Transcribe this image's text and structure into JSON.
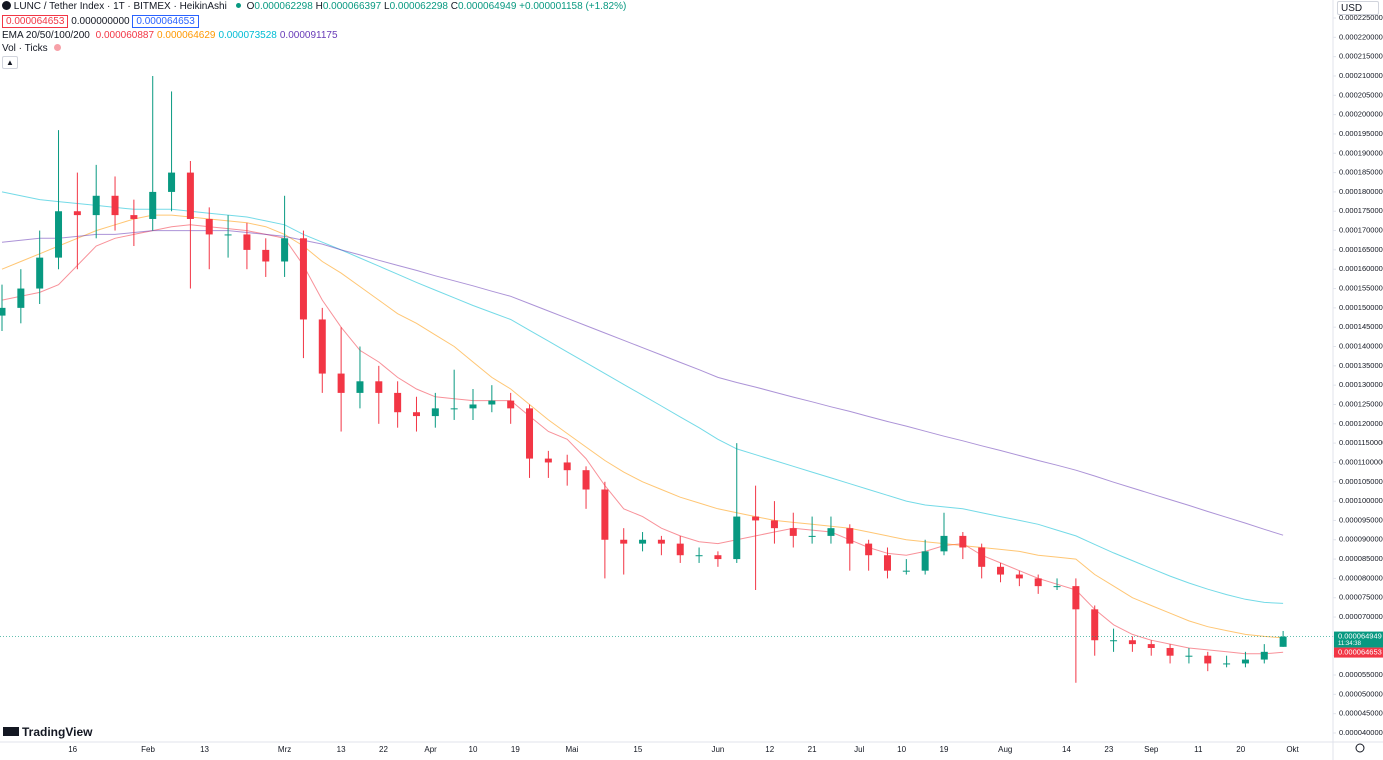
{
  "header": {
    "symbol": "LUNC / Tether Index · 1T · BITMEX · HeikinAshi",
    "ohlc_labels": [
      "O",
      "H",
      "L",
      "C"
    ],
    "change": "+0.000001158 (+1.82%)",
    "boxes": [
      "0.000064653",
      "0.000000000",
      "0.000064653"
    ],
    "ema_label": "EMA 20/50/100/200",
    "vol_label": "Vol · Ticks",
    "currency": "USD",
    "logo": "TradingView",
    "countdown": "11:34:38"
  },
  "chart_data": {
    "type": "candlestick",
    "x": [
      "01-01",
      "01-05",
      "01-09",
      "01-13",
      "01-17",
      "01-21",
      "01-25",
      "01-29",
      "02-02",
      "02-06",
      "02-10",
      "02-14",
      "02-18",
      "02-22",
      "02-26",
      "03-01",
      "03-05",
      "03-09",
      "03-13",
      "03-17",
      "03-21",
      "03-25",
      "03-29",
      "04-02",
      "04-06",
      "04-10",
      "04-14",
      "04-18",
      "04-22",
      "04-26",
      "04-30",
      "05-04",
      "05-08",
      "05-12",
      "05-16",
      "05-20",
      "05-24",
      "05-28",
      "06-01",
      "06-05",
      "06-09",
      "06-13",
      "06-17",
      "06-21",
      "06-25",
      "06-29",
      "07-03",
      "07-07",
      "07-11",
      "07-15",
      "07-19",
      "07-23",
      "07-27",
      "07-31",
      "08-04",
      "08-08",
      "08-12",
      "08-16",
      "08-20",
      "08-24",
      "08-28",
      "09-01",
      "09-05",
      "09-09",
      "09-13",
      "09-17",
      "09-21",
      "09-25",
      "09-29"
    ],
    "open": [
      0.000148,
      0.00015,
      0.000155,
      0.000163,
      0.000175,
      0.000174,
      0.000179,
      0.000174,
      0.000173,
      0.00018,
      0.000185,
      0.000173,
      0.000169,
      0.000169,
      0.000165,
      0.000162,
      0.000168,
      0.000147,
      0.000133,
      0.000128,
      0.000131,
      0.000128,
      0.000123,
      0.000122,
      0.000124,
      0.000124,
      0.000125,
      0.000126,
      0.000124,
      0.000111,
      0.00011,
      0.000108,
      0.000103,
      9e-05,
      8.9e-05,
      9e-05,
      8.9e-05,
      8.6e-05,
      8.6e-05,
      8.5e-05,
      9.6e-05,
      9.5e-05,
      9.3e-05,
      9.1e-05,
      9.1e-05,
      9.3e-05,
      8.9e-05,
      8.6e-05,
      8.2e-05,
      8.2e-05,
      8.7e-05,
      9.1e-05,
      8.8e-05,
      8.3e-05,
      8.1e-05,
      8e-05,
      7.8e-05,
      7.8e-05,
      7.2e-05,
      6.4e-05,
      6.4e-05,
      6.3e-05,
      6.2e-05,
      6e-05,
      6e-05,
      5.8e-05,
      5.8e-05,
      5.9e-05,
      6.2298e-05
    ],
    "high": [
      0.000156,
      0.00016,
      0.00017,
      0.000196,
      0.000185,
      0.000187,
      0.000184,
      0.000178,
      0.00021,
      0.000206,
      0.000188,
      0.000176,
      0.000174,
      0.000172,
      0.000168,
      0.000179,
      0.00017,
      0.00015,
      0.000145,
      0.00014,
      0.000135,
      0.000131,
      0.000127,
      0.000128,
      0.000134,
      0.000129,
      0.00013,
      0.000128,
      0.000125,
      0.000113,
      0.000112,
      0.000109,
      0.000105,
      9.3e-05,
      9.2e-05,
      9.1e-05,
      9.1e-05,
      8.8e-05,
      8.7e-05,
      0.000115,
      0.000104,
      0.0001,
      9.7e-05,
      9.6e-05,
      9.6e-05,
      9.4e-05,
      9e-05,
      8.8e-05,
      8.5e-05,
      9e-05,
      9.7e-05,
      9.2e-05,
      8.9e-05,
      8.4e-05,
      8.2e-05,
      8.1e-05,
      8e-05,
      8e-05,
      7.3e-05,
      6.7e-05,
      6.5e-05,
      6.4e-05,
      6.3e-05,
      6.2e-05,
      6.1e-05,
      6e-05,
      6.1e-05,
      6.3e-05,
      6.6397e-05
    ],
    "low": [
      0.000144,
      0.000146,
      0.000151,
      0.00016,
      0.00016,
      0.000168,
      0.00017,
      0.000166,
      0.00017,
      0.000175,
      0.000155,
      0.00016,
      0.000163,
      0.00016,
      0.000158,
      0.000158,
      0.000137,
      0.000128,
      0.000118,
      0.000124,
      0.00012,
      0.000119,
      0.000118,
      0.000119,
      0.000121,
      0.000121,
      0.000123,
      0.00012,
      0.000106,
      0.000106,
      0.000104,
      9.8e-05,
      8e-05,
      8.1e-05,
      8.7e-05,
      8.6e-05,
      8.4e-05,
      8.4e-05,
      8.3e-05,
      8.4e-05,
      7.7e-05,
      8.9e-05,
      8.8e-05,
      8.9e-05,
      8.9e-05,
      8.2e-05,
      8.2e-05,
      8e-05,
      8.1e-05,
      8.1e-05,
      8.6e-05,
      8.5e-05,
      8e-05,
      7.9e-05,
      7.8e-05,
      7.6e-05,
      7.7e-05,
      5.3e-05,
      6e-05,
      6.1e-05,
      6.1e-05,
      6e-05,
      5.8e-05,
      5.8e-05,
      5.6e-05,
      5.7e-05,
      5.7e-05,
      5.8e-05,
      6.2298e-05
    ],
    "close": [
      0.00015,
      0.000155,
      0.000163,
      0.000175,
      0.000174,
      0.000179,
      0.000174,
      0.000173,
      0.00018,
      0.000185,
      0.000173,
      0.000169,
      0.000169,
      0.000165,
      0.000162,
      0.000168,
      0.000147,
      0.000133,
      0.000128,
      0.000131,
      0.000128,
      0.000123,
      0.000122,
      0.000124,
      0.000124,
      0.000125,
      0.000126,
      0.000124,
      0.000111,
      0.00011,
      0.000108,
      0.000103,
      9e-05,
      8.9e-05,
      9e-05,
      8.9e-05,
      8.6e-05,
      8.6e-05,
      8.5e-05,
      9.6e-05,
      9.5e-05,
      9.3e-05,
      9.1e-05,
      9.1e-05,
      9.3e-05,
      8.9e-05,
      8.6e-05,
      8.2e-05,
      8.2e-05,
      8.7e-05,
      9.1e-05,
      8.8e-05,
      8.3e-05,
      8.1e-05,
      8e-05,
      7.8e-05,
      7.8e-05,
      7.2e-05,
      6.4e-05,
      6.4e-05,
      6.3e-05,
      6.2e-05,
      6e-05,
      6e-05,
      5.8e-05,
      5.8e-05,
      5.9e-05,
      6.1e-05,
      6.4949e-05
    ],
    "up_color": "#089981",
    "down_color": "#f23645",
    "series": [
      {
        "color": "#f23645",
        "values": [
          0.000152,
          0.000153,
          0.000154,
          0.000156,
          0.000161,
          0.000166,
          0.000168,
          0.000169,
          0.00017,
          0.000171,
          0.0001715,
          0.000171,
          0.0001705,
          0.00017,
          0.000169,
          0.000168,
          0.000161,
          0.000152,
          0.000145,
          0.000139,
          0.000136,
          0.000132,
          0.000129,
          0.000127,
          0.0001265,
          0.000126,
          0.000126,
          0.000126,
          0.000122,
          0.000118,
          0.000116,
          0.000111,
          0.000104,
          9.8e-05,
          9.6e-05,
          9.3e-05,
          9.1e-05,
          8.95e-05,
          8.9e-05,
          9e-05,
          9.1e-05,
          9.2e-05,
          9.3e-05,
          9.25e-05,
          9.2e-05,
          9e-05,
          8.8e-05,
          8.65e-05,
          8.6e-05,
          8.7e-05,
          8.85e-05,
          8.9e-05,
          8.6e-05,
          8.4e-05,
          8.2e-05,
          8e-05,
          7.85e-05,
          7.7e-05,
          7.2e-05,
          6.8e-05,
          6.55e-05,
          6.4e-05,
          6.3e-05,
          6.2e-05,
          6.15e-05,
          6.1e-05,
          6.05e-05,
          6.05e-05,
          6.0887e-05
        ]
      },
      {
        "color": "#ff9800",
        "values": [
          0.00016,
          0.000162,
          0.000164,
          0.000166,
          0.000168,
          0.00017,
          0.0001715,
          0.000173,
          0.000174,
          0.000174,
          0.0001735,
          0.000173,
          0.0001725,
          0.000172,
          0.000171,
          0.000169,
          0.000166,
          0.000162,
          0.000159,
          0.0001555,
          0.000152,
          0.0001485,
          0.000146,
          0.000143,
          0.00014,
          0.000136,
          0.000132,
          0.000129,
          0.000125,
          0.000121,
          0.0001175,
          0.000114,
          0.0001105,
          0.0001075,
          0.000105,
          0.000103,
          0.000101,
          9.95e-05,
          9.8e-05,
          9.7e-05,
          9.6e-05,
          9.5e-05,
          9.45e-05,
          9.4e-05,
          9.35e-05,
          9.3e-05,
          9.2e-05,
          9.1e-05,
          9e-05,
          8.95e-05,
          8.9e-05,
          8.85e-05,
          8.8e-05,
          8.75e-05,
          8.7e-05,
          8.6e-05,
          8.55e-05,
          8.5e-05,
          8.1e-05,
          7.8e-05,
          7.5e-05,
          7.3e-05,
          7.1e-05,
          6.9e-05,
          6.75e-05,
          6.65e-05,
          6.55e-05,
          6.5e-05,
          6.4629e-05
        ]
      },
      {
        "color": "#00bcd4",
        "values": [
          0.00018,
          0.000179,
          0.000178,
          0.0001775,
          0.000177,
          0.0001765,
          0.000176,
          0.0001755,
          0.0001755,
          0.0001755,
          0.000175,
          0.0001745,
          0.000174,
          0.0001735,
          0.0001725,
          0.0001715,
          0.000169,
          0.000167,
          0.000165,
          0.0001629,
          0.0001608,
          0.0001587,
          0.0001566,
          0.0001546,
          0.0001526,
          0.0001506,
          0.0001488,
          0.000147,
          0.0001442,
          0.0001414,
          0.0001386,
          0.0001358,
          0.000133,
          0.0001302,
          0.0001274,
          0.0001246,
          0.0001218,
          0.000119,
          0.000116,
          0.0001135,
          0.000112,
          0.0001105,
          0.000109,
          0.0001075,
          0.000106,
          0.0001045,
          0.000103,
          0.0001015,
          0.0001,
          9.9e-05,
          9.85e-05,
          9.8e-05,
          9.7e-05,
          9.6e-05,
          9.5e-05,
          9.4e-05,
          9.25e-05,
          9.1e-05,
          8.88e-05,
          8.66e-05,
          8.46e-05,
          8.26e-05,
          8.06e-05,
          7.88e-05,
          7.72e-05,
          7.58e-05,
          7.46e-05,
          7.38e-05,
          7.3528e-05
        ]
      },
      {
        "color": "#673ab7",
        "values": [
          0.000167,
          0.0001675,
          0.000168,
          0.000168,
          0.0001685,
          0.000169,
          0.000169,
          0.0001695,
          0.00017,
          0.00017,
          0.00017,
          0.00017,
          0.00017,
          0.0001695,
          0.000169,
          0.0001685,
          0.0001675,
          0.0001665,
          0.000165,
          0.0001637,
          0.0001623,
          0.000161,
          0.0001597,
          0.0001583,
          0.000157,
          0.0001557,
          0.0001543,
          0.000153,
          0.0001511,
          0.0001492,
          0.0001473,
          0.0001454,
          0.0001435,
          0.0001416,
          0.0001397,
          0.0001378,
          0.0001359,
          0.000134,
          0.000132,
          0.0001307,
          0.0001295,
          0.0001282,
          0.0001269,
          0.0001257,
          0.0001244,
          0.0001232,
          0.0001219,
          0.0001206,
          0.0001194,
          0.0001181,
          0.0001168,
          0.0001156,
          0.0001143,
          0.0001131,
          0.0001118,
          0.0001105,
          0.0001093,
          0.000108,
          0.0001065,
          0.0001049,
          0.0001034,
          0.0001019,
          0.0001004,
          9.89e-05,
          9.73e-05,
          9.58e-05,
          9.43e-05,
          9.27e-05,
          9.1175e-05
        ]
      }
    ],
    "marker_price": 6.4653e-05,
    "marker_color": "#f23645",
    "ylim": [
      4e-05,
      0.000225
    ],
    "yticks": [
      {
        "value": 4e-05,
        "label": "0.0000400000"
      },
      {
        "value": 4.5e-05,
        "label": "0.0000450000"
      },
      {
        "value": 5e-05,
        "label": "0.0000500000"
      },
      {
        "value": 5.5e-05,
        "label": "0.0000550000"
      },
      {
        "value": 6e-05,
        "label": "0.0000600000"
      },
      {
        "value": 6.5e-05,
        "label": "0.0000650000"
      },
      {
        "value": 7e-05,
        "label": "0.0000700000"
      },
      {
        "value": 7.5e-05,
        "label": "0.0000750000"
      },
      {
        "value": 8e-05,
        "label": "0.0000800000"
      },
      {
        "value": 8.5e-05,
        "label": "0.0000850000"
      },
      {
        "value": 9e-05,
        "label": "0.0000900000"
      },
      {
        "value": 9.5e-05,
        "label": "0.0000950000"
      },
      {
        "value": 0.0001,
        "label": "0.0001000000"
      },
      {
        "value": 0.000105,
        "label": "0.0001050000"
      },
      {
        "value": 0.00011,
        "label": "0.0001100000"
      },
      {
        "value": 0.000115,
        "label": "0.0001150000"
      },
      {
        "value": 0.00012,
        "label": "0.0001200000"
      },
      {
        "value": 0.000125,
        "label": "0.0001250000"
      },
      {
        "value": 0.00013,
        "label": "0.0001300000"
      },
      {
        "value": 0.000135,
        "label": "0.0001350000"
      },
      {
        "value": 0.00014,
        "label": "0.0001400000"
      },
      {
        "value": 0.000145,
        "label": "0.0001450000"
      },
      {
        "value": 0.00015,
        "label": "0.0001500000"
      },
      {
        "value": 0.000155,
        "label": "0.0001550000"
      },
      {
        "value": 0.00016,
        "label": "0.0001600000"
      },
      {
        "value": 0.000165,
        "label": "0.0001650000"
      },
      {
        "value": 0.00017,
        "label": "0.0001700000"
      },
      {
        "value": 0.000175,
        "label": "0.0001750000"
      },
      {
        "value": 0.00018,
        "label": "0.0001800000"
      },
      {
        "value": 0.000185,
        "label": "0.0001850000"
      },
      {
        "value": 0.00019,
        "label": "0.0001900000"
      },
      {
        "value": 0.000195,
        "label": "0.0001950000"
      },
      {
        "value": 0.0002,
        "label": "0.0002000000"
      },
      {
        "value": 0.000205,
        "label": "0.0002050000"
      },
      {
        "value": 0.00021,
        "label": "0.0002100000"
      },
      {
        "value": 0.000215,
        "label": "0.0002150000"
      },
      {
        "value": 0.00022,
        "label": "0.0002200000"
      },
      {
        "value": 0.000225,
        "label": "0.0002250000"
      }
    ],
    "xticks": [
      {
        "value": "01-16",
        "label": "16"
      },
      {
        "value": "02-01",
        "label": "Feb"
      },
      {
        "value": "02-13",
        "label": "13"
      },
      {
        "value": "03-01",
        "label": "Mrz"
      },
      {
        "value": "03-13",
        "label": "13"
      },
      {
        "value": "03-22",
        "label": "22"
      },
      {
        "value": "04-01",
        "label": "Apr"
      },
      {
        "value": "04-10",
        "label": "10"
      },
      {
        "value": "04-19",
        "label": "19"
      },
      {
        "value": "05-01",
        "label": "Mai"
      },
      {
        "value": "05-15",
        "label": "15"
      },
      {
        "value": "06-01",
        "label": "Jun"
      },
      {
        "value": "06-12",
        "label": "12"
      },
      {
        "value": "06-21",
        "label": "21"
      },
      {
        "value": "07-01",
        "label": "Jul"
      },
      {
        "value": "07-10",
        "label": "10"
      },
      {
        "value": "07-19",
        "label": "19"
      },
      {
        "value": "08-01",
        "label": "Aug"
      },
      {
        "value": "08-14",
        "label": "14"
      },
      {
        "value": "08-23",
        "label": "23"
      },
      {
        "value": "09-01",
        "label": "Sep"
      },
      {
        "value": "09-11",
        "label": "11"
      },
      {
        "value": "09-20",
        "label": "20"
      },
      {
        "value": "10-01",
        "label": "Okt"
      }
    ],
    "grid": false
  }
}
